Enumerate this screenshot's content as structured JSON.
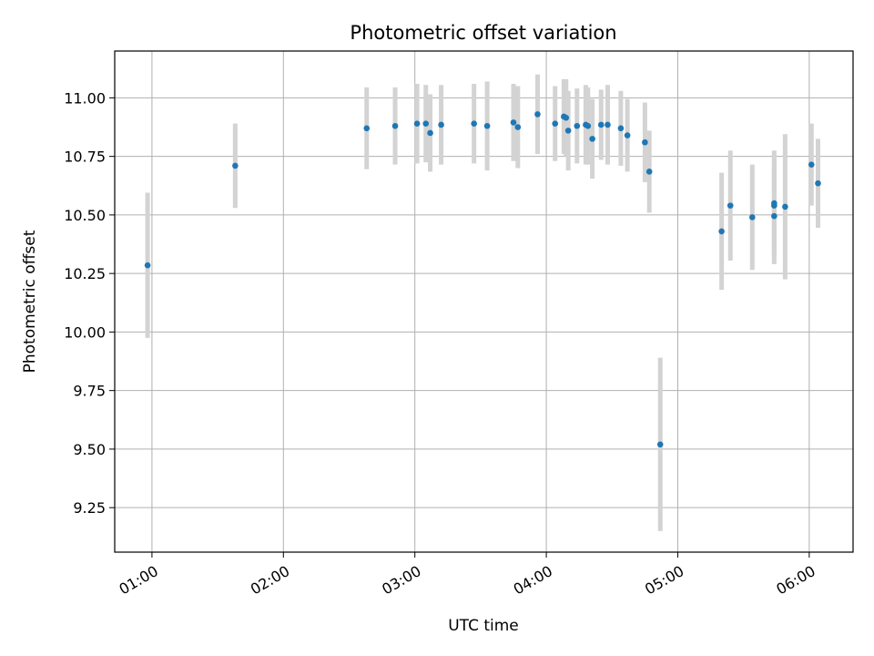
{
  "chart_data": {
    "type": "scatter",
    "title": "Photometric offset variation",
    "xlabel": "UTC time",
    "ylabel": "Photometric offset",
    "x_ticks": [
      "01:00",
      "02:00",
      "03:00",
      "04:00",
      "05:00",
      "06:00"
    ],
    "y_ticks": [
      "9.25",
      "9.50",
      "9.75",
      "10.00",
      "10.25",
      "10.50",
      "10.75",
      "11.00"
    ],
    "xlim": [
      "00:43",
      "06:20"
    ],
    "ylim": [
      9.06,
      11.2
    ],
    "grid": true,
    "colors": {
      "point": "#1f77b4",
      "errorbar": "#d3d3d3",
      "grid": "#b0b0b0",
      "axis": "#000000"
    },
    "series": [
      {
        "points": [
          {
            "x": "00:58",
            "y": 10.285,
            "err": 0.31
          },
          {
            "x": "01:38",
            "y": 10.71,
            "err": 0.18
          },
          {
            "x": "02:38",
            "y": 10.87,
            "err": 0.175
          },
          {
            "x": "02:51",
            "y": 10.88,
            "err": 0.165
          },
          {
            "x": "03:01",
            "y": 10.89,
            "err": 0.17
          },
          {
            "x": "03:05",
            "y": 10.89,
            "err": 0.165
          },
          {
            "x": "03:07",
            "y": 10.85,
            "err": 0.165
          },
          {
            "x": "03:12",
            "y": 10.885,
            "err": 0.17
          },
          {
            "x": "03:27",
            "y": 10.89,
            "err": 0.17
          },
          {
            "x": "03:33",
            "y": 10.88,
            "err": 0.19
          },
          {
            "x": "03:45",
            "y": 10.895,
            "err": 0.165
          },
          {
            "x": "03:47",
            "y": 10.875,
            "err": 0.175
          },
          {
            "x": "03:56",
            "y": 10.93,
            "err": 0.17
          },
          {
            "x": "04:04",
            "y": 10.89,
            "err": 0.16
          },
          {
            "x": "04:08",
            "y": 10.92,
            "err": 0.16
          },
          {
            "x": "04:09",
            "y": 10.915,
            "err": 0.165
          },
          {
            "x": "04:10",
            "y": 10.86,
            "err": 0.17
          },
          {
            "x": "04:14",
            "y": 10.88,
            "err": 0.16
          },
          {
            "x": "04:18",
            "y": 10.885,
            "err": 0.17
          },
          {
            "x": "04:19",
            "y": 10.88,
            "err": 0.165
          },
          {
            "x": "04:21",
            "y": 10.825,
            "err": 0.17
          },
          {
            "x": "04:25",
            "y": 10.885,
            "err": 0.15
          },
          {
            "x": "04:28",
            "y": 10.885,
            "err": 0.17
          },
          {
            "x": "04:34",
            "y": 10.87,
            "err": 0.16
          },
          {
            "x": "04:37",
            "y": 10.84,
            "err": 0.155
          },
          {
            "x": "04:45",
            "y": 10.81,
            "err": 0.17
          },
          {
            "x": "04:47",
            "y": 10.685,
            "err": 0.175
          },
          {
            "x": "04:52",
            "y": 9.52,
            "err": 0.37
          },
          {
            "x": "05:20",
            "y": 10.43,
            "err": 0.25
          },
          {
            "x": "05:24",
            "y": 10.54,
            "err": 0.235
          },
          {
            "x": "05:34",
            "y": 10.49,
            "err": 0.225
          },
          {
            "x": "05:44",
            "y": 10.55,
            "err": 0.225
          },
          {
            "x": "05:44",
            "y": 10.54,
            "err": 0.2
          },
          {
            "x": "05:44",
            "y": 10.495,
            "err": 0.205
          },
          {
            "x": "05:49",
            "y": 10.535,
            "err": 0.31
          },
          {
            "x": "06:01",
            "y": 10.715,
            "err": 0.175
          },
          {
            "x": "06:04",
            "y": 10.635,
            "err": 0.19
          }
        ]
      }
    ]
  }
}
